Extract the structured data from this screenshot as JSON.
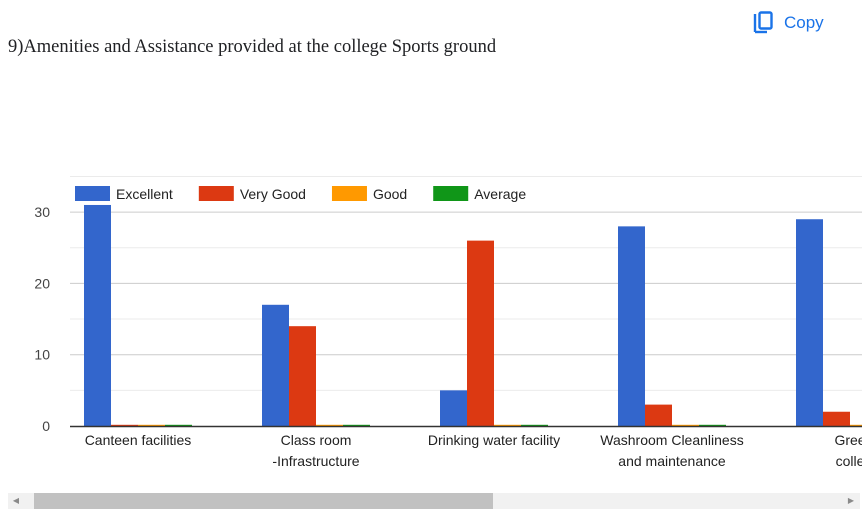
{
  "question": {
    "title": "9)Amenities and Assistance provided at the college Sports ground"
  },
  "actions": {
    "copy_label": "Copy",
    "copy_icon": "copy-icon"
  },
  "colors": {
    "excellent": "#3366cc",
    "very_good": "#dc3912",
    "good": "#ff9900",
    "average": "#109618",
    "accent": "#1a73e8"
  },
  "chart_data": {
    "type": "bar",
    "categories": [
      [
        "Canteen facilities"
      ],
      [
        "Class room",
        "-Infrastructure"
      ],
      [
        "Drinking water facility"
      ],
      [
        "Washroom Cleanliness",
        "and maintenance"
      ],
      [
        "Gree",
        "colle"
      ]
    ],
    "series": [
      {
        "name": "Excellent",
        "color": "#3366cc",
        "values": [
          31,
          17,
          5,
          28,
          29
        ]
      },
      {
        "name": "Very Good",
        "color": "#dc3912",
        "values": [
          0,
          14,
          26,
          3,
          2
        ]
      },
      {
        "name": "Good",
        "color": "#ff9900",
        "values": [
          0,
          0,
          0,
          0,
          0
        ]
      },
      {
        "name": "Average",
        "color": "#109618",
        "values": [
          0,
          0,
          0,
          0,
          0
        ]
      }
    ],
    "yticks": [
      0,
      10,
      20,
      30
    ],
    "ylim": [
      0,
      35
    ],
    "grid": true,
    "legend": "top-left",
    "xlabel": "",
    "ylabel": ""
  }
}
